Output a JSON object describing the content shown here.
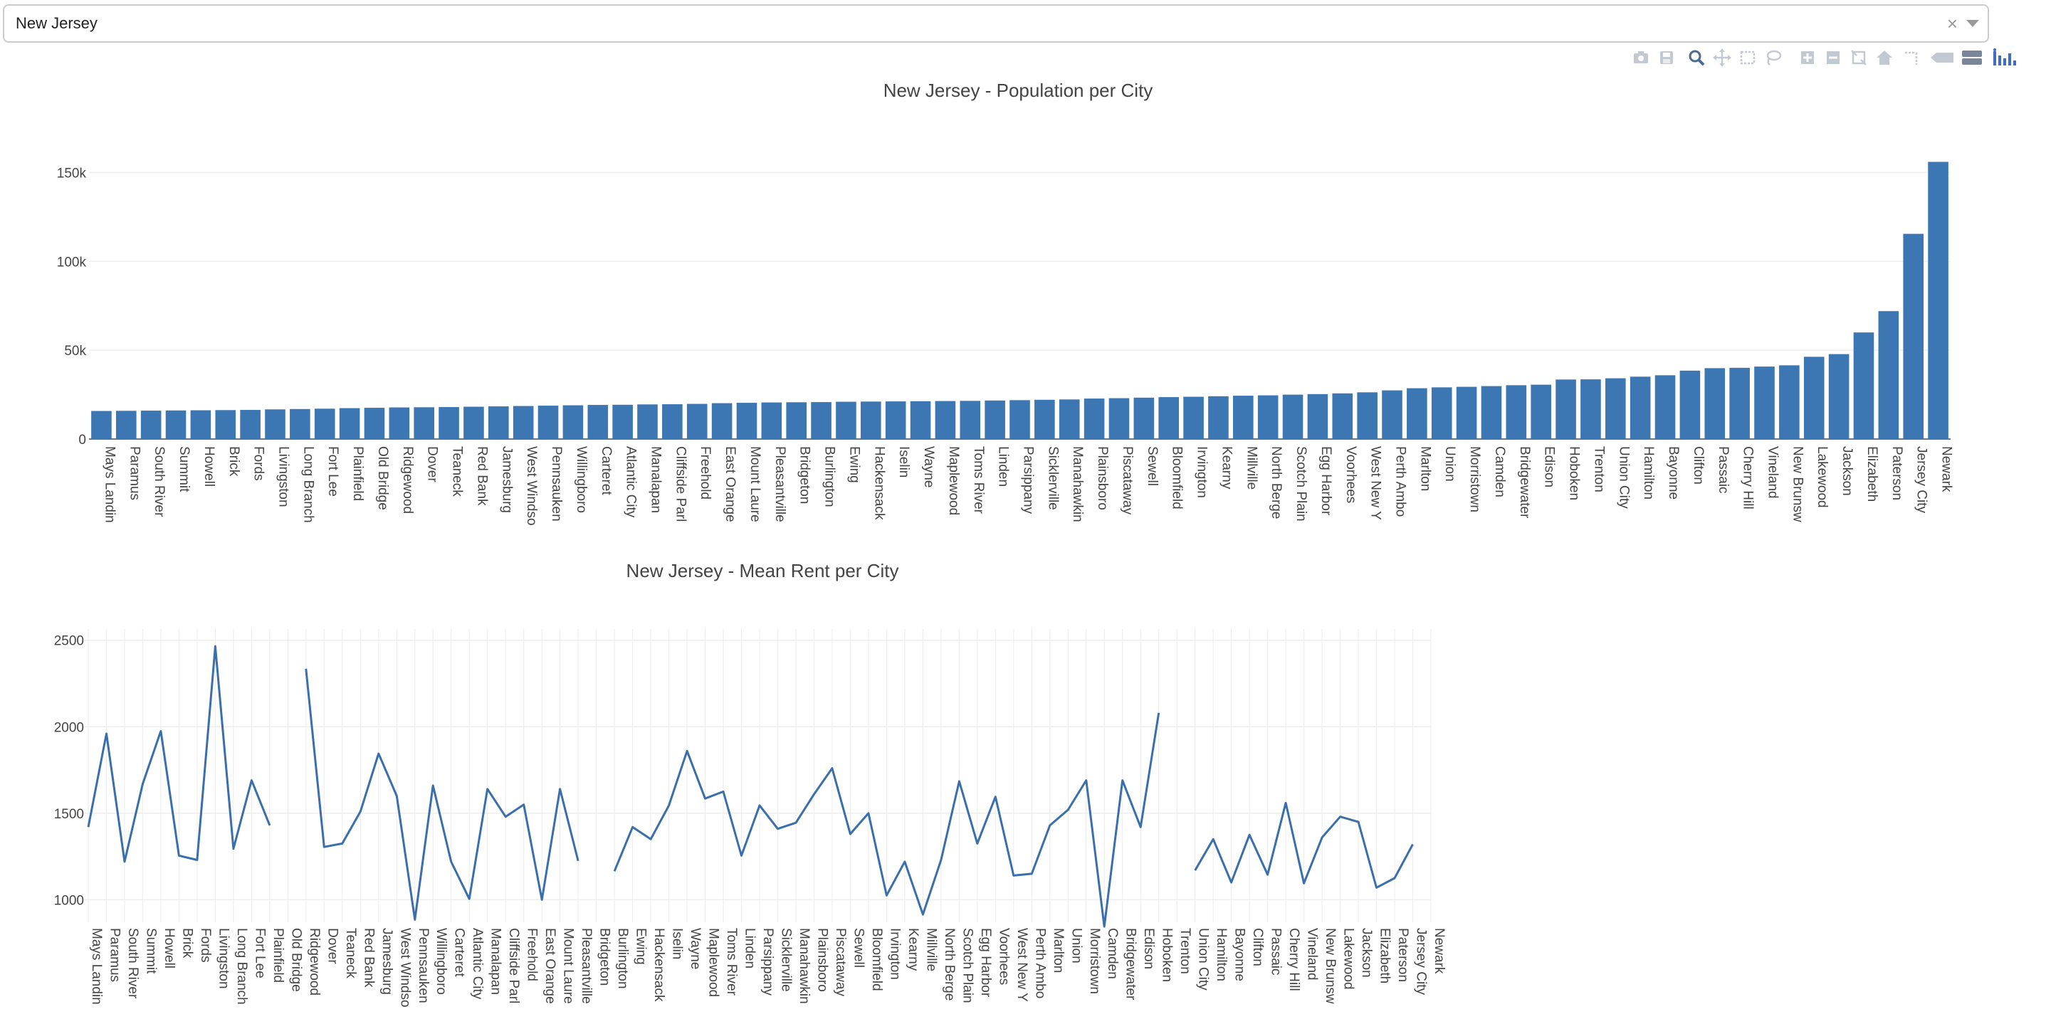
{
  "dropdown": {
    "value": "New Jersey",
    "clear_glyph": "×"
  },
  "modebar": {
    "buttons": [
      "camera-icon",
      "save-icon",
      "zoom-icon",
      "pan-icon",
      "box-select-icon",
      "lasso-icon",
      "zoom-in-icon",
      "zoom-out-icon",
      "autoscale-icon",
      "home-icon",
      "spike-lines-icon",
      "hover-closest-icon",
      "hover-compare-icon",
      "plotly-logo-icon"
    ]
  },
  "colors": {
    "bar": "#3d77b3",
    "line": "#3a6fab",
    "grid": "#eeeeee"
  },
  "chart_data": [
    {
      "type": "bar",
      "title": "New Jersey - Population per City",
      "categories": [
        "Mays Landin",
        "Paramus",
        "South River",
        "Summit",
        "Howell",
        "Brick",
        "Fords",
        "Livingston",
        "Long Branch",
        "Fort Lee",
        "Plainfield",
        "Old Bridge",
        "Ridgewood",
        "Dover",
        "Teaneck",
        "Red Bank",
        "Jamesburg",
        "West Windso",
        "Pennsauken",
        "Willingboro",
        "Carteret",
        "Atlantic City",
        "Manalapan",
        "Cliffside Parl",
        "Freehold",
        "East Orange",
        "Mount Laure",
        "Pleasantville",
        "Bridgeton",
        "Burlington",
        "Ewing",
        "Hackensack",
        "Iselin",
        "Wayne",
        "Maplewood",
        "Toms River",
        "Linden",
        "Parsippany",
        "Sicklerville",
        "Manahawkin",
        "Plainsboro",
        "Piscataway",
        "Sewell",
        "Bloomfield",
        "Irvington",
        "Kearny",
        "Millville",
        "North Berge",
        "Scotch Plain",
        "Egg Harbor",
        "Voorhees",
        "West New Y",
        "Perth Ambo",
        "Marlton",
        "Union",
        "Morristown",
        "Camden",
        "Bridgewater",
        "Edison",
        "Hoboken",
        "Trenton",
        "Union City",
        "Hamilton",
        "Bayonne",
        "Clifton",
        "Passaic",
        "Cherry Hill",
        "Vineland",
        "New Brunsw",
        "Lakewood",
        "Jackson",
        "Elizabeth",
        "Paterson",
        "Jersey City",
        "Newark"
      ],
      "values": [
        15800,
        15900,
        16000,
        16100,
        16200,
        16300,
        16400,
        16700,
        16900,
        17100,
        17400,
        17600,
        17800,
        17900,
        18000,
        18200,
        18400,
        18600,
        18800,
        19000,
        19200,
        19300,
        19500,
        19600,
        19800,
        20200,
        20400,
        20600,
        20700,
        20800,
        21000,
        21100,
        21200,
        21300,
        21400,
        21500,
        21700,
        21900,
        22100,
        22300,
        22800,
        23000,
        23300,
        23600,
        23800,
        24100,
        24400,
        24600,
        25000,
        25300,
        25700,
        26300,
        27400,
        28600,
        29100,
        29400,
        29800,
        30300,
        30600,
        33500,
        33600,
        34200,
        35100,
        35900,
        38500,
        39900,
        40100,
        40800,
        41500,
        46300,
        47800,
        60000,
        72000,
        115500,
        156000
      ],
      "xlabel": "",
      "ylabel": "",
      "ylim": [
        0,
        165000
      ],
      "yticks": [
        0,
        50000,
        100000,
        150000
      ],
      "ytick_labels": [
        "0",
        "50k",
        "100k",
        "150k"
      ],
      "grid": true
    },
    {
      "type": "line",
      "title": "New Jersey - Mean Rent per City",
      "categories": [
        "Mays Landin",
        "Paramus",
        "South River",
        "Summit",
        "Howell",
        "Brick",
        "Fords",
        "Livingston",
        "Long Branch",
        "Fort Lee",
        "Plainfield",
        "Old Bridge",
        "Ridgewood",
        "Dover",
        "Teaneck",
        "Red Bank",
        "Jamesburg",
        "West Windso",
        "Pennsauken",
        "Willingboro",
        "Carteret",
        "Atlantic City",
        "Manalapan",
        "Cliffside Parl",
        "Freehold",
        "East Orange",
        "Mount Laure",
        "Pleasantville",
        "Bridgeton",
        "Burlington",
        "Ewing",
        "Hackensack",
        "Iselin",
        "Wayne",
        "Maplewood",
        "Toms River",
        "Linden",
        "Parsippany",
        "Sicklerville",
        "Manahawkin",
        "Plainsboro",
        "Piscataway",
        "Sewell",
        "Bloomfield",
        "Irvington",
        "Kearny",
        "Millville",
        "North Berge",
        "Scotch Plain",
        "Egg Harbor",
        "Voorhees",
        "West New Y",
        "Perth Ambo",
        "Marlton",
        "Union",
        "Morristown",
        "Camden",
        "Bridgewater",
        "Edison",
        "Hoboken",
        "Trenton",
        "Union City",
        "Hamilton",
        "Bayonne",
        "Clifton",
        "Passaic",
        "Cherry Hill",
        "Vineland",
        "New Brunsw",
        "Lakewood",
        "Jackson",
        "Elizabeth",
        "Paterson",
        "Jersey City",
        "Newark"
      ],
      "values": [
        1420,
        1960,
        1220,
        1670,
        1975,
        1255,
        1230,
        2465,
        1295,
        1690,
        1430,
        null,
        2335,
        1305,
        1325,
        1510,
        1845,
        1600,
        885,
        1660,
        1220,
        1005,
        1640,
        1480,
        1550,
        1000,
        1640,
        1225,
        null,
        1165,
        1420,
        1350,
        1545,
        1860,
        1585,
        1625,
        1255,
        1545,
        1410,
        1445,
        1610,
        1760,
        1380,
        1500,
        1025,
        1220,
        915,
        1230,
        1685,
        1325,
        1595,
        1140,
        1150,
        1430,
        1520,
        1690,
        845,
        1690,
        1420,
        2080,
        null,
        1170,
        1350,
        1100,
        1375,
        1145,
        1560,
        1095,
        1360,
        1480,
        1450,
        1070,
        1125,
        1320,
        null
      ],
      "xlabel": "",
      "ylabel": "",
      "ylim": [
        870,
        2540
      ],
      "yticks": [
        1000,
        1500,
        2000,
        2500
      ],
      "ytick_labels": [
        "1000",
        "1500",
        "2000",
        "2500"
      ],
      "grid": true
    }
  ]
}
